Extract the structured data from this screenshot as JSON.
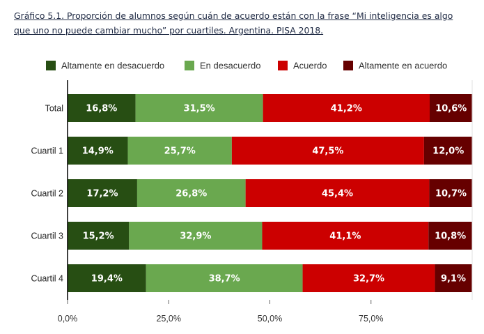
{
  "chart_data": {
    "type": "bar",
    "orientation": "horizontal",
    "stacked": true,
    "title": "Gráfico 5.1. Proporción de alumnos según cuán de acuerdo están con la frase “Mi inteligencia es algo que uno no puede cambiar mucho” por cuartiles. Argentina. PISA 2018.",
    "categories": [
      "Total",
      "Cuartil 1",
      "Cuartil 2",
      "Cuartil 3",
      "Cuartil 4"
    ],
    "series": [
      {
        "name": "Altamente en desacuerdo",
        "color": "#274e13",
        "values": [
          16.8,
          14.9,
          17.2,
          15.2,
          19.4
        ],
        "labels": [
          "16,8%",
          "14,9%",
          "17,2%",
          "15,2%",
          "19,4%"
        ]
      },
      {
        "name": "En desacuerdo",
        "color": "#6aa84f",
        "values": [
          31.5,
          25.7,
          26.8,
          32.9,
          38.7
        ],
        "labels": [
          "31,5%",
          "25,7%",
          "26,8%",
          "32,9%",
          "38,7%"
        ]
      },
      {
        "name": "Acuerdo",
        "color": "#cc0000",
        "values": [
          41.2,
          47.5,
          45.4,
          41.1,
          32.7
        ],
        "labels": [
          "41,2%",
          "47,5%",
          "45,4%",
          "41,1%",
          "32,7%"
        ]
      },
      {
        "name": "Altamente en acuerdo",
        "color": "#660000",
        "values": [
          10.6,
          12.0,
          10.7,
          10.8,
          9.1
        ],
        "labels": [
          "10,6%",
          "12,0%",
          "10,7%",
          "10,8%",
          "9,1%"
        ]
      }
    ],
    "xlim": [
      0,
      100
    ],
    "xticks": [
      0,
      25,
      50,
      75
    ],
    "xtick_labels": [
      "0,0%",
      "25,0%",
      "50,0%",
      "75,0%"
    ],
    "legend": "top",
    "grid": false
  }
}
